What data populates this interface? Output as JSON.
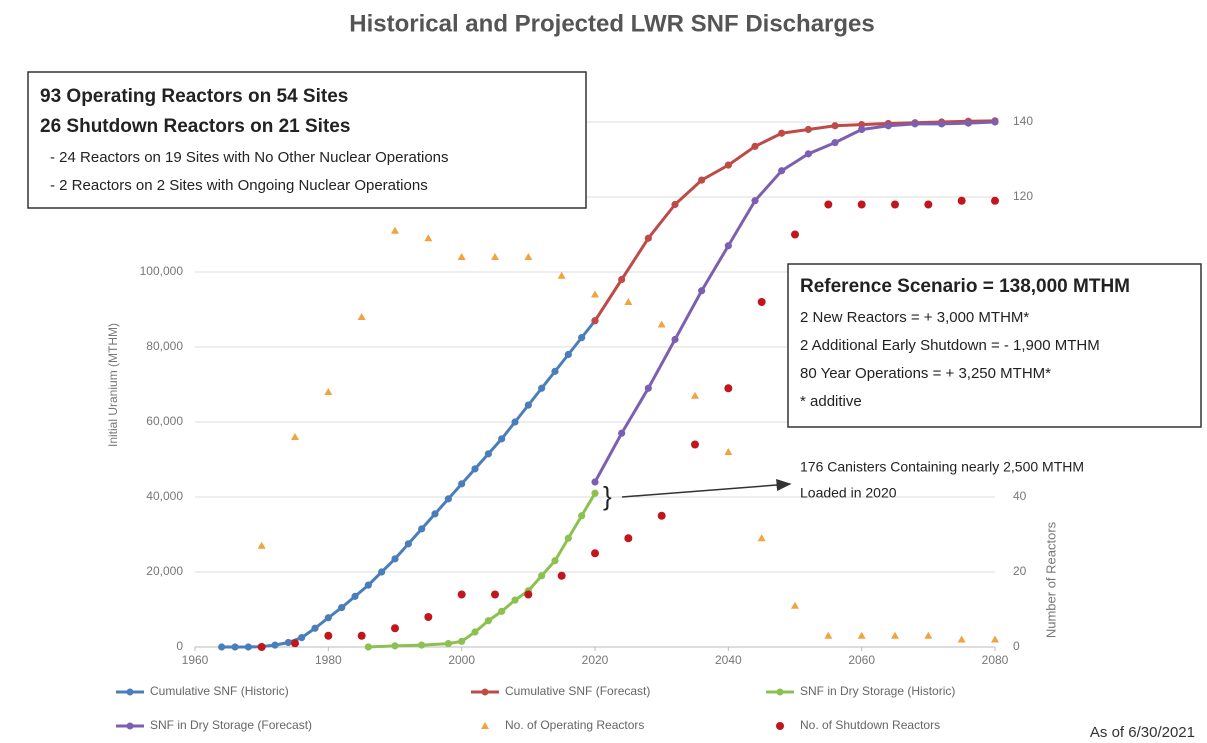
{
  "chart_data": {
    "type": "line-scatter",
    "title": "Historical and Projected LWR SNF Discharges",
    "y_label": "Initial Uranium (MTHM)",
    "y2_label": "Number of Reactors",
    "note": "As of 6/30/2021",
    "xlim": [
      1960,
      2080
    ],
    "xticks": [
      1960,
      1980,
      2000,
      2020,
      2040,
      2060,
      2080
    ],
    "ylim": [
      0,
      140000
    ],
    "yticks": [
      0,
      {
        "value": 20000,
        "label": "20,000"
      },
      {
        "value": 40000,
        "label": "40,000"
      },
      {
        "value": 60000,
        "label": "60,000"
      },
      {
        "value": 80000,
        "label": "80,000"
      },
      {
        "value": 100000,
        "label": "100,000"
      }
    ],
    "y2lim": [
      0,
      140
    ],
    "y2ticks": [
      0,
      20,
      40,
      120,
      140
    ],
    "grid": true,
    "series": [
      {
        "name": "Cumulative SNF (Historic)",
        "color": "#4a7ebb",
        "marker": "circle",
        "x": [
          1964,
          1966,
          1968,
          1970,
          1972,
          1974,
          1976,
          1978,
          1980,
          1982,
          1984,
          1986,
          1988,
          1990,
          1992,
          1994,
          1996,
          1998,
          2000,
          2002,
          2004,
          2006,
          2008,
          2010,
          2012,
          2014,
          2016,
          2018,
          2020
        ],
        "values": [
          0,
          0,
          0,
          100,
          500,
          1200,
          2500,
          5000,
          7800,
          10500,
          13500,
          16500,
          20000,
          23500,
          27500,
          31500,
          35500,
          39500,
          43500,
          47500,
          51500,
          55500,
          60000,
          64500,
          69000,
          73500,
          78000,
          82500,
          87000
        ]
      },
      {
        "name": "Cumulative SNF (Forecast)",
        "color": "#be4b48",
        "marker": "circle",
        "x": [
          2020,
          2024,
          2028,
          2032,
          2036,
          2040,
          2044,
          2048,
          2052,
          2056,
          2060,
          2064,
          2068,
          2072,
          2076,
          2080
        ],
        "values": [
          87000,
          98000,
          109000,
          118000,
          124500,
          128500,
          133500,
          137000,
          138000,
          139000,
          139300,
          139600,
          139800,
          140000,
          140200,
          140300
        ]
      },
      {
        "name": "SNF in Dry Storage (Historic)",
        "color": "#8cc152",
        "marker": "circle",
        "x": [
          1986,
          1990,
          1994,
          1998,
          2000,
          2002,
          2004,
          2006,
          2008,
          2010,
          2012,
          2014,
          2016,
          2018,
          2020
        ],
        "values": [
          0,
          300,
          500,
          900,
          1500,
          4000,
          7000,
          9500,
          12500,
          15000,
          19000,
          23000,
          29000,
          35000,
          41000
        ]
      },
      {
        "name": "SNF in Dry Storage (Forecast)",
        "color": "#7d5fb0",
        "marker": "circle",
        "x": [
          2020,
          2024,
          2028,
          2032,
          2036,
          2040,
          2044,
          2048,
          2052,
          2056,
          2060,
          2064,
          2068,
          2072,
          2076,
          2080
        ],
        "values": [
          44000,
          57000,
          69000,
          82000,
          95000,
          107000,
          119000,
          127000,
          131500,
          134500,
          138000,
          139000,
          139500,
          139500,
          139700,
          140000
        ]
      },
      {
        "name": "No. of Operating Reactors",
        "color": "#f0a33e",
        "marker": "triangle",
        "axis": "y2",
        "x": [
          1970,
          1975,
          1980,
          1985,
          1990,
          1995,
          2000,
          2005,
          2010,
          2015,
          2020,
          2025,
          2030,
          2035,
          2040,
          2045,
          2050,
          2055,
          2060,
          2065,
          2070,
          2075,
          2080
        ],
        "values": [
          27,
          56,
          68,
          88,
          111,
          109,
          104,
          104,
          104,
          99,
          94,
          92,
          86,
          67,
          52,
          29,
          11,
          3,
          3,
          3,
          3,
          2,
          2
        ]
      },
      {
        "name": "No. of Shutdown Reactors",
        "color": "#c0161c",
        "marker": "dot",
        "axis": "y2",
        "x": [
          1970,
          1975,
          1980,
          1985,
          1990,
          1995,
          2000,
          2005,
          2010,
          2015,
          2020,
          2025,
          2030,
          2035,
          2040,
          2045,
          2050,
          2055,
          2060,
          2065,
          2070,
          2075,
          2080
        ],
        "values": [
          0,
          1,
          3,
          3,
          5,
          8,
          14,
          14,
          14,
          19,
          25,
          29,
          35,
          54,
          69,
          92,
          110,
          118,
          118,
          118,
          118,
          119,
          119
        ]
      }
    ],
    "box1": [
      "93 Operating Reactors on 54 Sites",
      "26 Shutdown Reactors on 21 Sites",
      "- 24 Reactors on 19 Sites with No Other Nuclear Operations",
      "- 2 Reactors on 2 Sites with Ongoing Nuclear Operations"
    ],
    "box2": [
      "Reference Scenario = 138,000 MTHM",
      "2 New Reactors = + 3,000 MTHM*",
      "2 Additional Early Shutdown = - 1,900 MTHM",
      "80 Year Operations = + 3,250 MTHM*",
      "* additive"
    ],
    "callout": [
      "176 Canisters Containing nearly 2,500 MTHM",
      "Loaded in 2020"
    ]
  }
}
